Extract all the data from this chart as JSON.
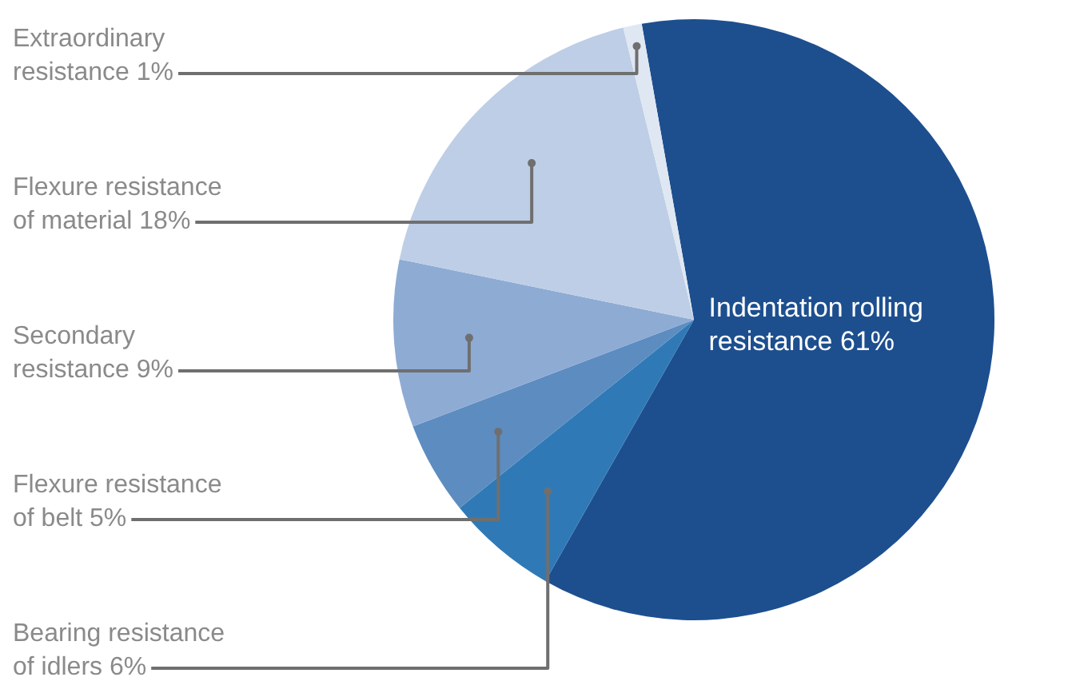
{
  "chart_data": {
    "type": "pie",
    "categories": [
      "Indentation rolling resistance",
      "Bearing resistance of idlers",
      "Flexure resistance of belt",
      "Secondary resistance",
      "Flexure resistance of material",
      "Extraordinary resistance"
    ],
    "values": [
      61,
      6,
      5,
      9,
      18,
      1
    ],
    "value_labels": [
      "61%",
      "6%",
      "5%",
      "9%",
      "18%",
      "1%"
    ],
    "colors": [
      "#1d4f8f",
      "#2f7ab6",
      "#5d8cc0",
      "#8eabd4",
      "#bdcee6",
      "#dfe7f2"
    ],
    "legend": false
  }
}
